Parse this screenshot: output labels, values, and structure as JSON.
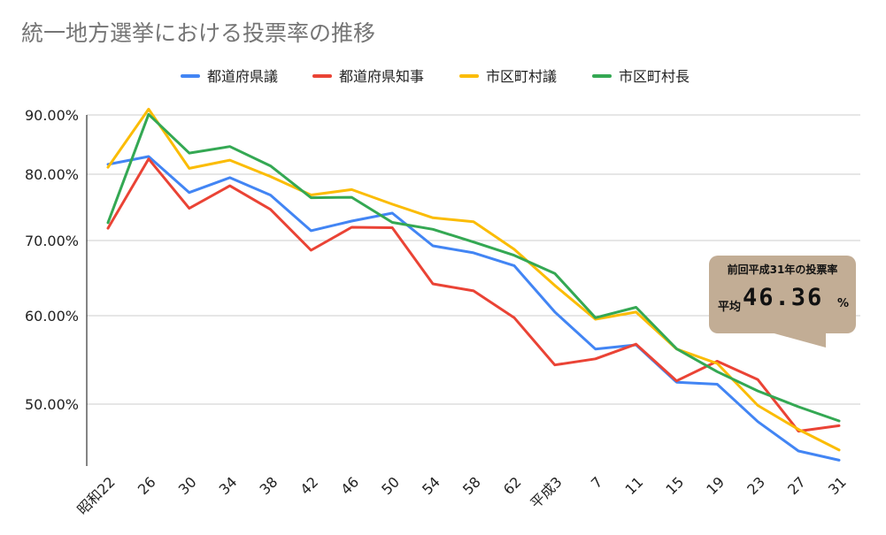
{
  "chart_data": {
    "type": "line",
    "title": "統一地方選挙における投票率の推移",
    "xlabel": "",
    "ylabel": "",
    "categories": [
      "昭和22",
      "26",
      "30",
      "34",
      "38",
      "42",
      "46",
      "50",
      "54",
      "58",
      "62",
      "平成3",
      "7",
      "11",
      "15",
      "19",
      "23",
      "27",
      "31"
    ],
    "y_ticks": [
      {
        "value": 90,
        "label": "90.00%"
      },
      {
        "value": 80,
        "label": "80.00%"
      },
      {
        "value": 70,
        "label": "70.00%"
      },
      {
        "value": 60,
        "label": "60.00%"
      },
      {
        "value": 50,
        "label": "50.00%"
      }
    ],
    "ylim": [
      43,
      90
    ],
    "grid": true,
    "legend_position": "top",
    "series": [
      {
        "name": "都道府県議",
        "color": "#4285f4",
        "values": [
          81.65,
          82.99,
          77.24,
          79.48,
          76.85,
          71.48,
          72.94,
          74.13,
          69.3,
          68.36,
          66.66,
          60.49,
          56.23,
          56.7,
          52.48,
          52.25,
          48.15,
          45.05,
          44.08
        ]
      },
      {
        "name": "都道府県知事",
        "color": "#ea4335",
        "values": [
          71.85,
          82.58,
          74.85,
          78.25,
          74.69,
          68.71,
          72.0,
          71.93,
          64.24,
          63.31,
          59.78,
          54.43,
          55.12,
          56.78,
          52.63,
          54.85,
          52.77,
          47.14,
          47.72
        ]
      },
      {
        "name": "市区町村議",
        "color": "#fbbc04",
        "values": [
          81.17,
          91.02,
          80.99,
          82.37,
          79.66,
          76.87,
          77.68,
          75.48,
          73.42,
          72.84,
          68.83,
          64.02,
          59.6,
          60.48,
          56.23,
          54.6,
          49.86,
          47.33,
          45.16
        ]
      },
      {
        "name": "市区町村長",
        "color": "#34a853",
        "values": [
          72.69,
          90.11,
          83.56,
          84.67,
          81.41,
          76.45,
          76.52,
          72.73,
          71.7,
          69.8,
          68.04,
          65.62,
          59.77,
          61.12,
          56.26,
          53.67,
          51.49,
          49.72,
          48.23
        ]
      }
    ]
  },
  "callout": {
    "heading": "前回平成31年の投票率",
    "label": "平均",
    "value": "46.36",
    "unit": "%",
    "color": "#c2ad95"
  }
}
